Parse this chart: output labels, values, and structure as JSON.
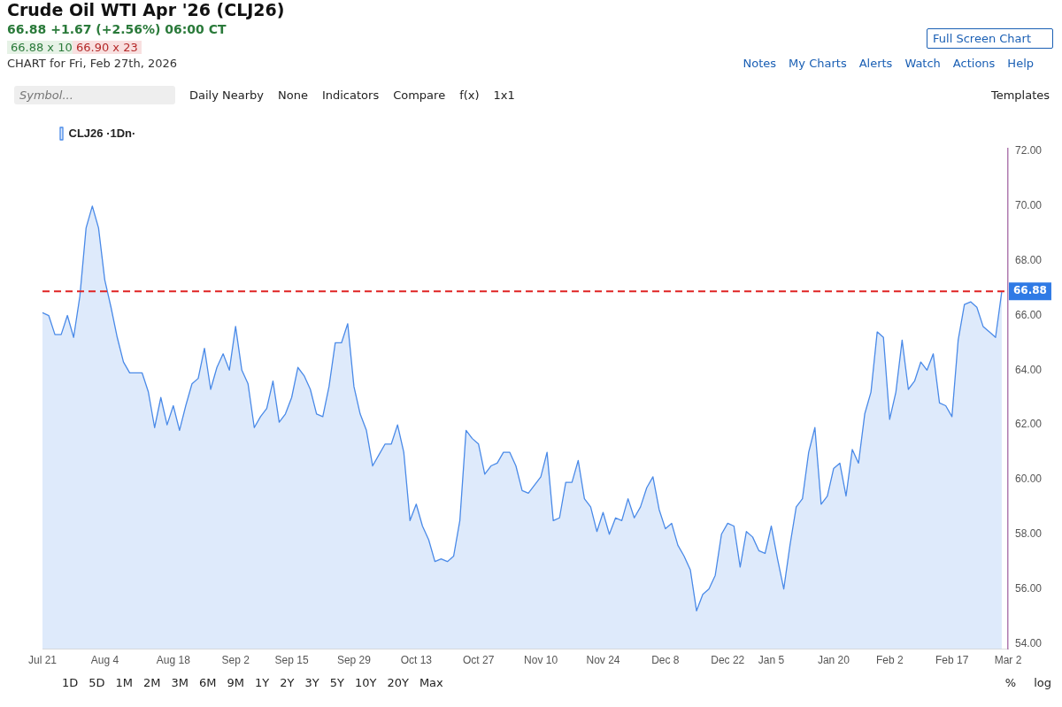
{
  "chart_data": {
    "type": "area",
    "title": "Crude Oil WTI Apr '26 (CLJ26)",
    "subtitle": "66.88 +1.67 (+2.56%) 06:00 CT",
    "annotations": [
      "66.88 x 10",
      "66.90 x 23",
      "CHART for Fri, Feb 27th, 2026",
      "Full Screen Chart",
      "Notes",
      "My Charts",
      "Alerts",
      "Watch",
      "Actions",
      "Help",
      "Symbol...",
      "Daily Nearby",
      "None",
      "Indicators",
      "Compare",
      "f(x)",
      "1x1",
      "Templates",
      "1D",
      "5D",
      "1M",
      "2M",
      "3M",
      "6M",
      "9M",
      "1Y",
      "2Y",
      "3Y",
      "5Y",
      "10Y",
      "20Y",
      "Max",
      "%",
      "log"
    ],
    "categories": [
      "Jul 21",
      null,
      null,
      null,
      null,
      null,
      null,
      null,
      null,
      null,
      "Aug 4",
      null,
      null,
      null,
      null,
      null,
      null,
      null,
      null,
      null,
      null,
      "Aug 18",
      null,
      null,
      null,
      null,
      null,
      null,
      null,
      null,
      null,
      "Sep 2",
      null,
      null,
      null,
      null,
      null,
      null,
      null,
      null,
      "Sep 15",
      null,
      null,
      null,
      null,
      null,
      null,
      null,
      null,
      null,
      "Sep 29",
      null,
      null,
      null,
      null,
      null,
      null,
      null,
      null,
      null,
      "Oct 13",
      null,
      null,
      null,
      null,
      null,
      null,
      null,
      null,
      null,
      "Oct 27",
      null,
      null,
      null,
      null,
      null,
      null,
      null,
      null,
      null,
      "Nov 10",
      null,
      null,
      null,
      null,
      null,
      null,
      null,
      null,
      null,
      "Nov 24",
      null,
      null,
      null,
      null,
      null,
      null,
      null,
      null,
      null,
      "Dec 8",
      null,
      null,
      null,
      null,
      null,
      null,
      null,
      null,
      null,
      "Dec 22",
      null,
      null,
      null,
      null,
      null,
      null,
      "Jan 5",
      null,
      null,
      null,
      null,
      null,
      null,
      null,
      null,
      null,
      "Jan 20",
      null,
      null,
      null,
      null,
      null,
      null,
      null,
      null,
      "Feb 2",
      null,
      null,
      null,
      null,
      null,
      null,
      null,
      null,
      null,
      "Feb 17",
      null,
      null,
      null,
      null,
      null,
      null,
      null,
      null,
      "Mar 2"
    ],
    "series": [
      {
        "name": "CLJ26 ·1Dn·",
        "color": "#4a8ae8",
        "values": [
          66.1,
          66.0,
          65.3,
          65.3,
          66.0,
          65.2,
          66.7,
          69.2,
          70.0,
          69.2,
          67.3,
          66.3,
          65.2,
          64.3,
          63.9,
          63.9,
          63.9,
          63.2,
          61.9,
          63.0,
          62.0,
          62.7,
          61.8,
          62.7,
          63.5,
          63.7,
          64.8,
          63.3,
          64.1,
          64.6,
          64.0,
          65.6,
          64.0,
          63.5,
          61.9,
          62.3,
          62.6,
          63.6,
          62.1,
          62.4,
          63.0,
          64.1,
          63.8,
          63.3,
          62.4,
          62.3,
          63.4,
          65.0,
          65.0,
          65.7,
          63.4,
          62.4,
          61.8,
          60.5,
          60.9,
          61.3,
          61.3,
          62.0,
          61.0,
          58.5,
          59.1,
          58.3,
          57.8,
          57.0,
          57.1,
          57.0,
          57.2,
          58.5,
          61.8,
          61.5,
          61.3,
          60.2,
          60.5,
          60.6,
          61.0,
          61.0,
          60.5,
          59.6,
          59.5,
          59.8,
          60.1,
          61.0,
          58.5,
          58.6,
          59.9,
          59.9,
          60.7,
          59.3,
          59.0,
          58.1,
          58.8,
          58.0,
          58.6,
          58.5,
          59.3,
          58.6,
          59.0,
          59.7,
          60.1,
          58.9,
          58.2,
          58.4,
          57.6,
          57.2,
          56.7,
          55.2,
          55.8,
          56.0,
          56.5,
          58.0,
          58.4,
          58.3,
          56.8,
          58.1,
          57.9,
          57.4,
          57.3,
          58.3,
          57.1,
          56.0,
          57.6,
          59.0,
          59.3,
          61.0,
          61.9,
          59.1,
          59.4,
          60.4,
          60.6,
          59.4,
          61.1,
          60.6,
          62.4,
          63.2,
          65.4,
          65.2,
          62.2,
          63.2,
          65.1,
          63.3,
          63.6,
          64.3,
          64.0,
          64.6,
          62.8,
          62.7,
          62.3,
          65.1,
          66.4,
          66.5,
          66.3,
          65.6,
          65.4,
          65.2,
          66.88,
          null
        ]
      }
    ],
    "ylim": [
      53.8,
      72.1
    ],
    "yticks": [
      {
        "value": 54,
        "label": "54.00"
      },
      {
        "value": 56,
        "label": "56.00"
      },
      {
        "value": 58,
        "label": "58.00"
      },
      {
        "value": 60,
        "label": "60.00"
      },
      {
        "value": 62,
        "label": "62.00"
      },
      {
        "value": 64,
        "label": "64.00"
      },
      {
        "value": 66,
        "label": "66.00"
      },
      {
        "value": 68,
        "label": "68.00"
      },
      {
        "value": 70,
        "label": "70.00"
      },
      {
        "value": 72,
        "label": "72.00"
      }
    ],
    "ref_lines": [
      {
        "axis": "y",
        "value": 66.88,
        "label": "66.88",
        "color": "#e02424",
        "line_style": "dashed"
      }
    ],
    "legend": "top left",
    "marker": "none",
    "line_style": "solid"
  }
}
